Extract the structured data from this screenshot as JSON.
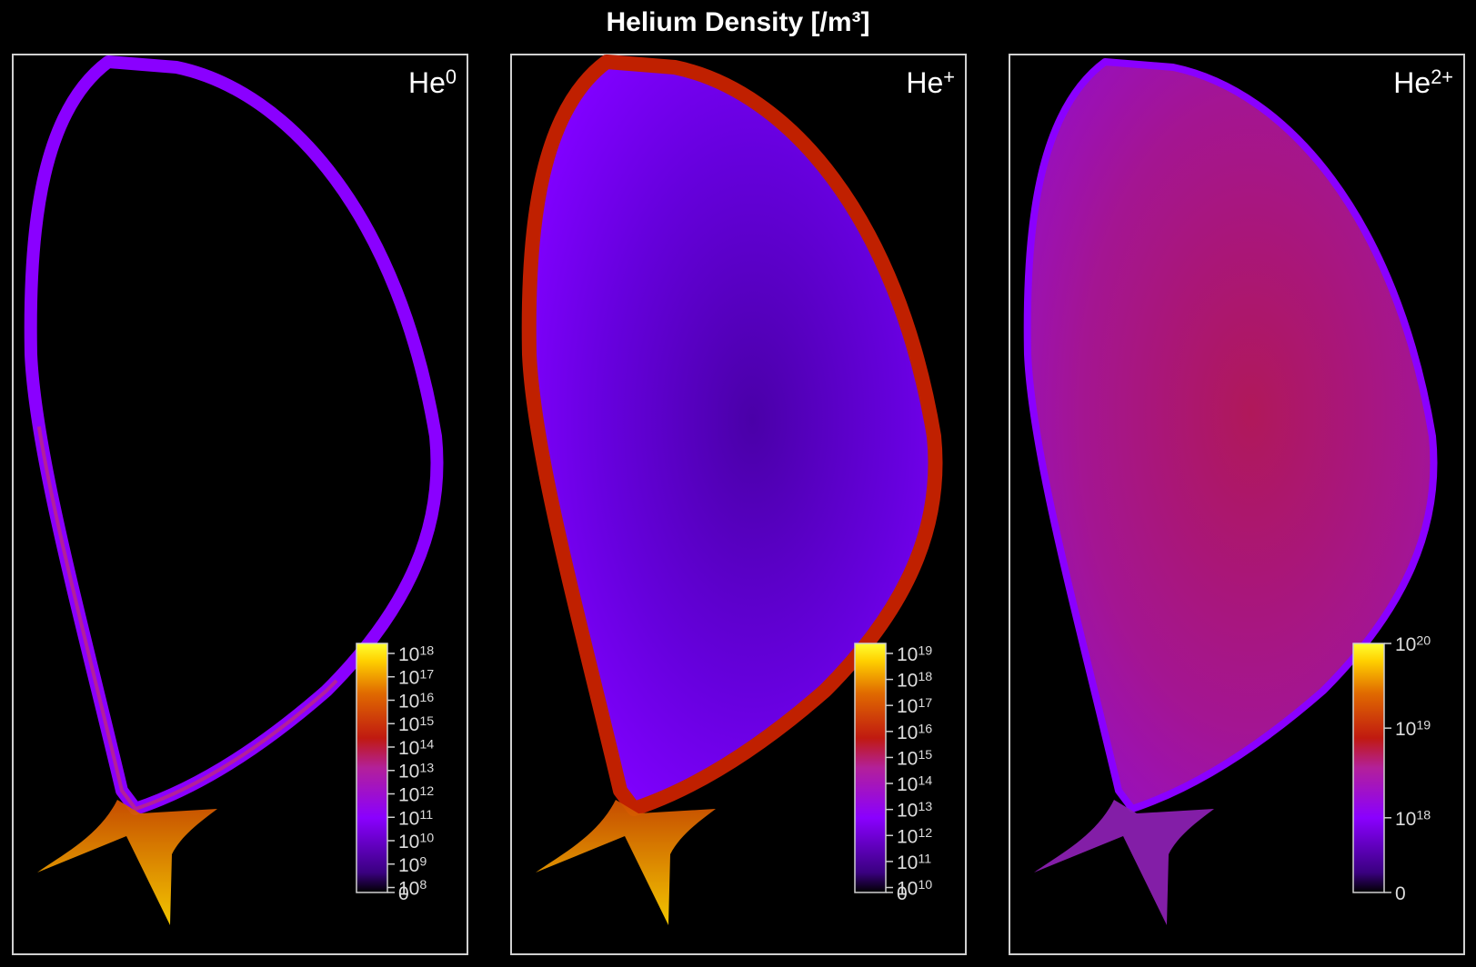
{
  "title": "Helium Density [/m³]",
  "chart_data": [
    {
      "type": "heatmap",
      "panel_label": {
        "base": "He",
        "sup": "0"
      },
      "colorbar": {
        "scale": "log",
        "ticks": [
          {
            "base": "0",
            "sup": ""
          },
          {
            "base": "10",
            "sup": "8"
          },
          {
            "base": "10",
            "sup": "9"
          },
          {
            "base": "10",
            "sup": "10"
          },
          {
            "base": "10",
            "sup": "11"
          },
          {
            "base": "10",
            "sup": "12"
          },
          {
            "base": "10",
            "sup": "13"
          },
          {
            "base": "10",
            "sup": "14"
          },
          {
            "base": "10",
            "sup": "15"
          },
          {
            "base": "10",
            "sup": "16"
          },
          {
            "base": "10",
            "sup": "17"
          },
          {
            "base": "10",
            "sup": "18"
          }
        ],
        "range": [
          "0",
          "1e18"
        ]
      },
      "fill": "edge"
    },
    {
      "type": "heatmap",
      "panel_label": {
        "base": "He",
        "sup": "+"
      },
      "colorbar": {
        "scale": "log",
        "ticks": [
          {
            "base": "0",
            "sup": ""
          },
          {
            "base": "10",
            "sup": "10"
          },
          {
            "base": "10",
            "sup": "11"
          },
          {
            "base": "10",
            "sup": "12"
          },
          {
            "base": "10",
            "sup": "13"
          },
          {
            "base": "10",
            "sup": "14"
          },
          {
            "base": "10",
            "sup": "15"
          },
          {
            "base": "10",
            "sup": "16"
          },
          {
            "base": "10",
            "sup": "17"
          },
          {
            "base": "10",
            "sup": "18"
          },
          {
            "base": "10",
            "sup": "19"
          }
        ],
        "range": [
          "0",
          "1e19"
        ]
      },
      "fill": "core-low"
    },
    {
      "type": "heatmap",
      "panel_label": {
        "base": "He",
        "sup": "2+"
      },
      "colorbar": {
        "scale": "log",
        "ticks": [
          {
            "base": "0",
            "sup": ""
          },
          {
            "base": "10",
            "sup": "18"
          },
          {
            "base": "10",
            "sup": "19"
          },
          {
            "base": "10",
            "sup": "20"
          }
        ],
        "range": [
          "0",
          "1e20"
        ]
      },
      "fill": "core-high"
    }
  ],
  "colormap": [
    "#000000",
    "#3a0080",
    "#8a00ff",
    "#b3209a",
    "#c01a10",
    "#e06a00",
    "#ffd000",
    "#ffff30"
  ]
}
